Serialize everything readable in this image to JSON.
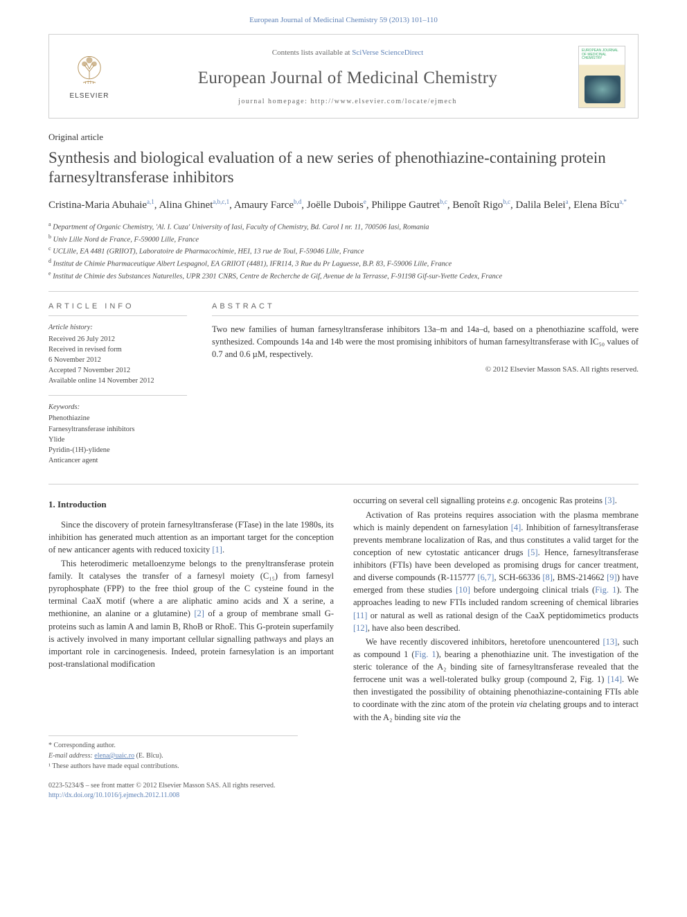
{
  "header_cite": "European Journal of Medicinal Chemistry 59 (2013) 101–110",
  "frame": {
    "contents_prefix": "Contents lists available at ",
    "contents_link": "SciVerse ScienceDirect",
    "journal": "European Journal of Medicinal Chemistry",
    "homepage_prefix": "journal homepage: ",
    "homepage_url": "http://www.elsevier.com/locate/ejmech",
    "publisher": "ELSEVIER",
    "cover_label": "EUROPEAN JOURNAL OF MEDICINAL CHEMISTRY"
  },
  "article_type": "Original article",
  "title": "Synthesis and biological evaluation of a new series of phenothiazine-containing protein farnesyltransferase inhibitors",
  "authors_html": "Cristina-Maria Abuhaie|a,1|, Alina Ghinet|a,b,c,1|, Amaury Farce|b,d|, Joëlle Dubois|e|, Philippe Gautret|b,c|, Benoît Rigo|b,c|, Dalila Belei|a|, Elena Bîcu|a,*|",
  "affiliations": [
    {
      "key": "a",
      "text": "Department of Organic Chemistry, 'Al. I. Cuza' University of Iasi, Faculty of Chemistry, Bd. Carol I nr. 11, 700506 Iasi, Romania"
    },
    {
      "key": "b",
      "text": "Univ Lille Nord de France, F-59000 Lille, France"
    },
    {
      "key": "c",
      "text": "UCLille, EA 4481 (GRIIOT), Laboratoire de Pharmacochimie, HEI, 13 rue de Toul, F-59046 Lille, France"
    },
    {
      "key": "d",
      "text": "Institut de Chimie Pharmaceutique Albert Lespagnol, EA GRIIOT (4481), IFR114, 3 Rue du Pr Laguesse, B.P. 83, F-59006 Lille, France"
    },
    {
      "key": "e",
      "text": "Institut de Chimie des Substances Naturelles, UPR 2301 CNRS, Centre de Recherche de Gif, Avenue de la Terrasse, F-91198 Gif-sur-Yvette Cedex, France"
    }
  ],
  "info": {
    "heading": "ARTICLE INFO",
    "history_label": "Article history:",
    "history": [
      "Received 26 July 2012",
      "Received in revised form",
      "6 November 2012",
      "Accepted 7 November 2012",
      "Available online 14 November 2012"
    ],
    "keywords_label": "Keywords:",
    "keywords": [
      "Phenothiazine",
      "Farnesyltransferase inhibitors",
      "Ylide",
      "Pyridin-(1H)-ylidene",
      "Anticancer agent"
    ]
  },
  "abstract": {
    "heading": "ABSTRACT",
    "text": "Two new families of human farnesyltransferase inhibitors 13a–m and 14a–d, based on a phenothiazine scaffold, were synthesized. Compounds 14a and 14b were the most promising inhibitors of human farnesyltransferase with IC₅₀ values of 0.7 and 0.6 µM, respectively.",
    "copyright": "© 2012 Elsevier Masson SAS. All rights reserved."
  },
  "section_1": {
    "heading": "1. Introduction",
    "p1": "Since the discovery of protein farnesyltransferase (FTase) in the late 1980s, its inhibition has generated much attention as an important target for the conception of new anticancer agents with reduced toxicity [1].",
    "p2": "This heterodimeric metalloenzyme belongs to the prenyltransferase protein family. It catalyses the transfer of a farnesyl moiety (C₁₅) from farnesyl pyrophosphate (FPP) to the free thiol group of the C cysteine found in the terminal CaaX motif (where a are aliphatic amino acids and X a serine, a methionine, an alanine or a glutamine) [2] of a group of membrane small G-proteins such as lamin A and lamin B, RhoB or RhoE. This G-protein superfamily is actively involved in many important cellular signalling pathways and plays an important role in carcinogenesis. Indeed, protein farnesylation is an important post-translational modification",
    "p3": "occurring on several cell signalling proteins e.g. oncogenic Ras proteins [3].",
    "p4": "Activation of Ras proteins requires association with the plasma membrane which is mainly dependent on farnesylation [4]. Inhibition of farnesyltransferase prevents membrane localization of Ras, and thus constitutes a valid target for the conception of new cytostatic anticancer drugs [5]. Hence, farnesyltransferase inhibitors (FTIs) have been developed as promising drugs for cancer treatment, and diverse compounds (R-115777 [6,7], SCH-66336 [8], BMS-214662 [9]) have emerged from these studies [10] before undergoing clinical trials (Fig. 1). The approaches leading to new FTIs included random screening of chemical libraries [11] or natural as well as rational design of the CaaX peptidomimetics products [12], have also been described.",
    "p5": "We have recently discovered inhibitors, heretofore unencountered [13], such as compound 1 (Fig. 1), bearing a phenothiazine unit. The investigation of the steric tolerance of the A₂ binding site of farnesyltransferase revealed that the ferrocene unit was a well-tolerated bulky group (compound 2, Fig. 1) [14]. We then investigated the possibility of obtaining phenothiazine-containing FTIs able to coordinate with the zinc atom of the protein via chelating groups and to interact with the A₂ binding site via the"
  },
  "footnotes": {
    "corr_label": "* Corresponding author.",
    "email_label": "E-mail address:",
    "email": "elena@uaic.ro",
    "email_name": "(E. Bîcu).",
    "equal": "¹ These authors have made equal contributions."
  },
  "footer": {
    "left_line1": "0223-5234/$ – see front matter © 2012 Elsevier Masson SAS. All rights reserved.",
    "doi": "http://dx.doi.org/10.1016/j.ejmech.2012.11.008"
  },
  "colors": {
    "link": "#5b7fb5",
    "rule": "#cfcfcf",
    "text": "#333333",
    "muted": "#666666"
  }
}
